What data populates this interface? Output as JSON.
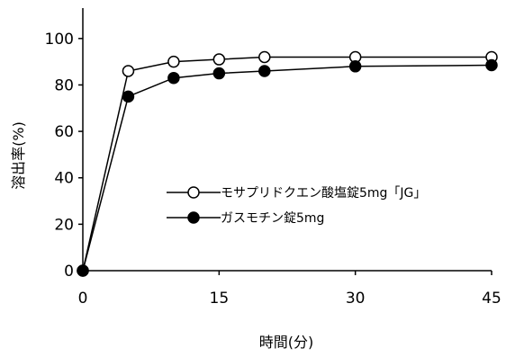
{
  "chart_data": {
    "type": "line",
    "xlabel": "時間(分)",
    "ylabel": "溶出率(%)",
    "xlim": [
      0,
      45
    ],
    "ylim": [
      0,
      110
    ],
    "x_ticks": [
      0,
      15,
      30,
      45
    ],
    "y_ticks": [
      0,
      20,
      40,
      60,
      80,
      100
    ],
    "x_tick_labels": [
      "0",
      "15",
      "30",
      "45"
    ],
    "y_tick_labels": [
      "0",
      "20",
      "40",
      "60",
      "80",
      "100"
    ],
    "grid": false,
    "legend_position": "center-right",
    "series": [
      {
        "name": "モサプリドクエン酸塩錠5mg「JG」",
        "marker": "open-circle",
        "color": "#000000",
        "x": [
          0,
          5,
          10,
          15,
          20,
          30,
          45
        ],
        "y": [
          0,
          86,
          90,
          91,
          92,
          92,
          92
        ]
      },
      {
        "name": "ガスモチン錠5mg",
        "marker": "filled-circle",
        "color": "#000000",
        "x": [
          0,
          5,
          10,
          15,
          20,
          30,
          45
        ],
        "y": [
          0,
          75,
          83,
          85,
          86,
          88,
          88.5
        ]
      }
    ]
  }
}
